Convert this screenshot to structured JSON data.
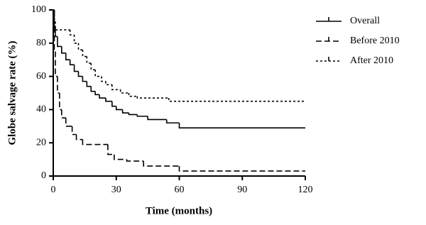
{
  "chart_data": {
    "type": "line",
    "step": true,
    "xlabel": "Time (months)",
    "ylabel": "Globe salvage rate (%)",
    "xlim": [
      0,
      120
    ],
    "ylim": [
      0,
      100
    ],
    "xticks": [
      0,
      30,
      60,
      90,
      120
    ],
    "yticks": [
      0,
      20,
      40,
      60,
      80,
      100
    ],
    "grid": false,
    "legend": "right",
    "series": [
      {
        "name": "Overall",
        "color": "#000000",
        "line_style": "solid",
        "x": [
          0,
          0.5,
          1,
          2,
          4,
          6,
          8,
          10,
          12,
          14,
          16,
          18,
          20,
          22,
          25,
          28,
          30,
          33,
          36,
          40,
          45,
          54,
          60,
          120
        ],
        "values": [
          100,
          90,
          84,
          78,
          74,
          70,
          67,
          63,
          60,
          57,
          54,
          51,
          49,
          47,
          45,
          42,
          40,
          38,
          37,
          36,
          34,
          32,
          29,
          29
        ]
      },
      {
        "name": "Before 2010",
        "color": "#000000",
        "line_style": "dashed",
        "x": [
          0,
          0.5,
          1,
          2,
          3,
          4,
          6,
          9,
          11,
          14,
          26,
          29,
          35,
          43,
          60,
          120
        ],
        "values": [
          100,
          75,
          60,
          50,
          40,
          35,
          30,
          25,
          22,
          19,
          13,
          10,
          9,
          6,
          3,
          3
        ]
      },
      {
        "name": "After 2010",
        "color": "#000000",
        "line_style": "dotted",
        "x": [
          0,
          0.5,
          1,
          8,
          10,
          12,
          14,
          16,
          18,
          20,
          23,
          25,
          28,
          32,
          36,
          40,
          55,
          120
        ],
        "values": [
          100,
          93,
          88,
          85,
          80,
          76,
          72,
          68,
          64,
          60,
          57,
          55,
          52,
          50,
          48,
          47,
          45,
          45
        ]
      }
    ]
  }
}
